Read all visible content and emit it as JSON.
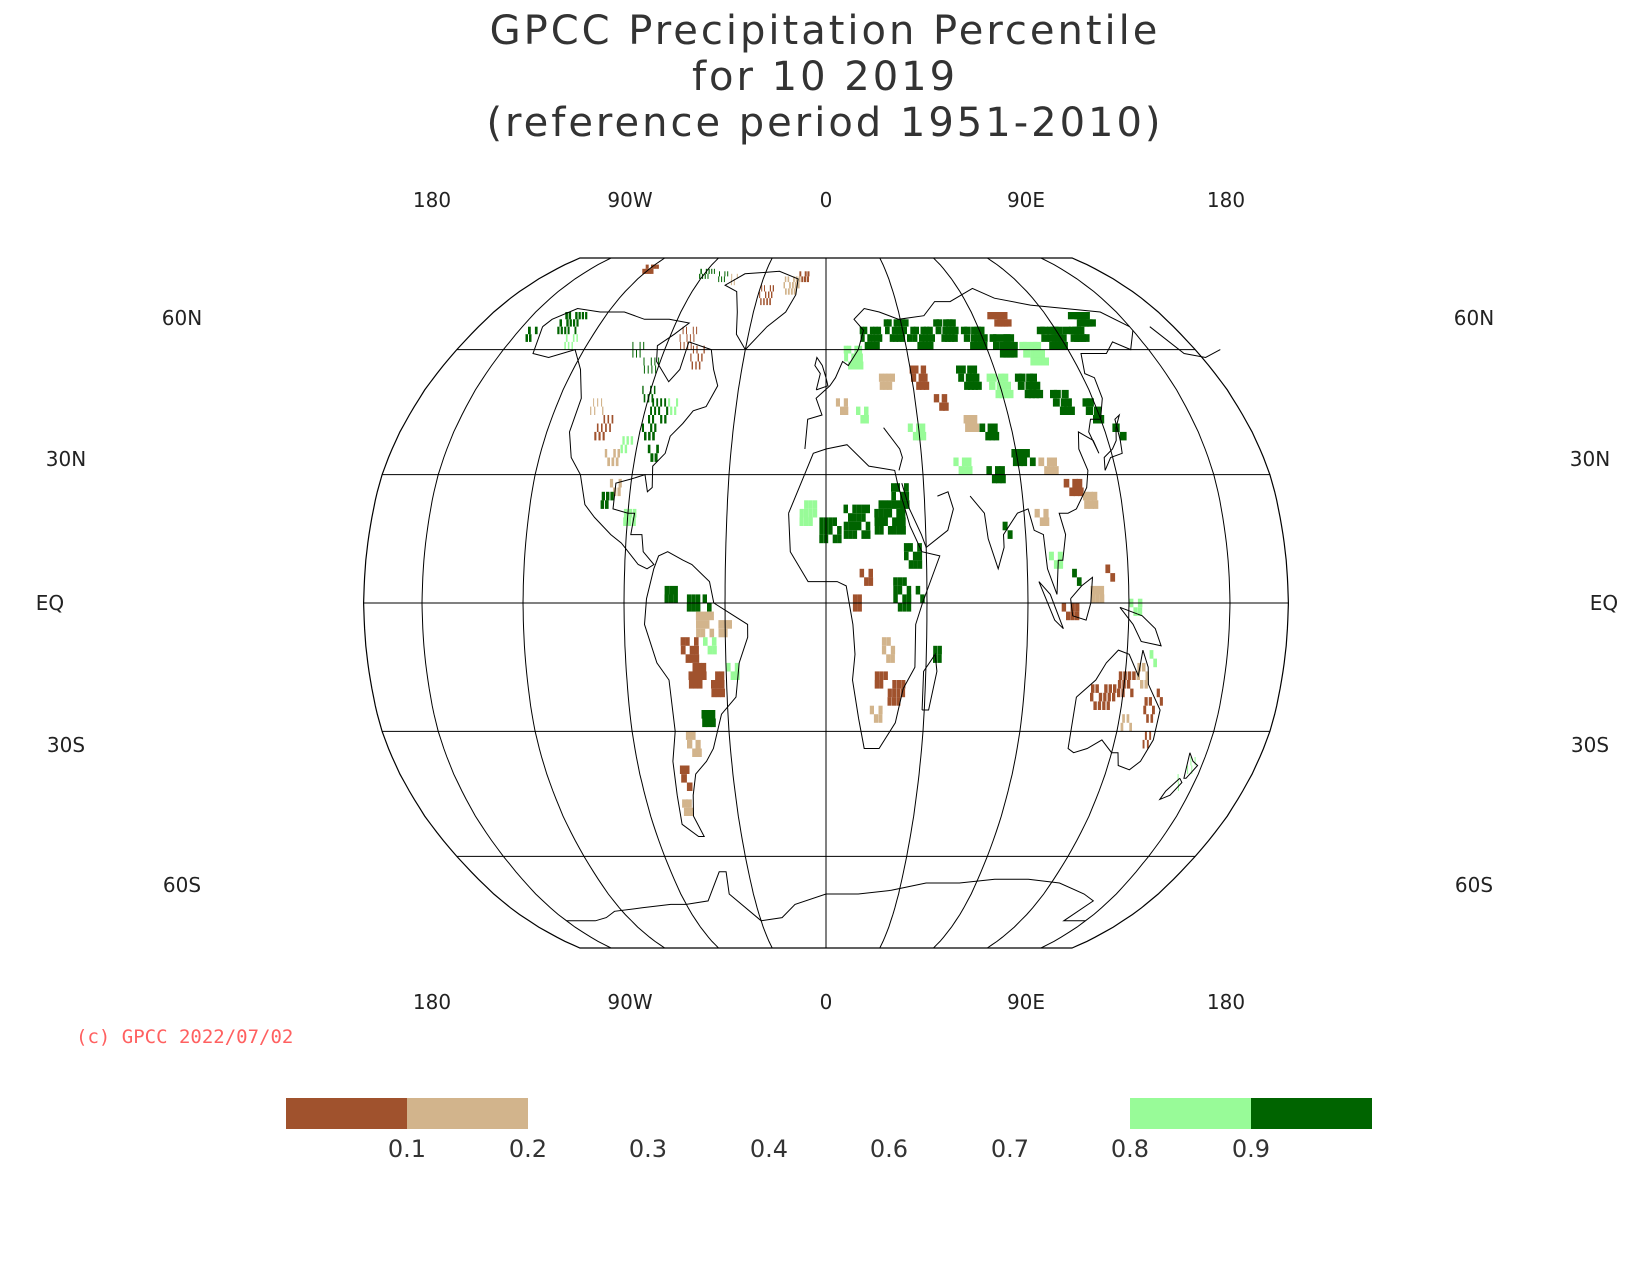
{
  "title": {
    "line1": "GPCC Precipitation Percentile",
    "line2": "for 10 2019",
    "line3": "(reference period 1951-2010)"
  },
  "map": {
    "projection": "Robinson",
    "top_lon_labels": [
      "180",
      "90W",
      "0",
      "90E",
      "180"
    ],
    "bottom_lon_labels": [
      "180",
      "90W",
      "0",
      "90E",
      "180"
    ],
    "lat_labels_left": [
      "60N",
      "30N",
      "EQ",
      "30S",
      "60S"
    ],
    "lat_labels_right": [
      "60N",
      "30N",
      "EQ",
      "30S",
      "60S"
    ]
  },
  "copyright": {
    "text": "(c) GPCC 2022/07/02",
    "color": "#ff6060"
  },
  "legend": {
    "colors": {
      "very_dry": "#a0522d",
      "dry": "#d2b48c",
      "wet": "#98fb98",
      "very_wet": "#006400"
    },
    "ticks": [
      "0.1",
      "0.2",
      "0.3",
      "0.4",
      "0.6",
      "0.7",
      "0.8",
      "0.9"
    ]
  }
}
